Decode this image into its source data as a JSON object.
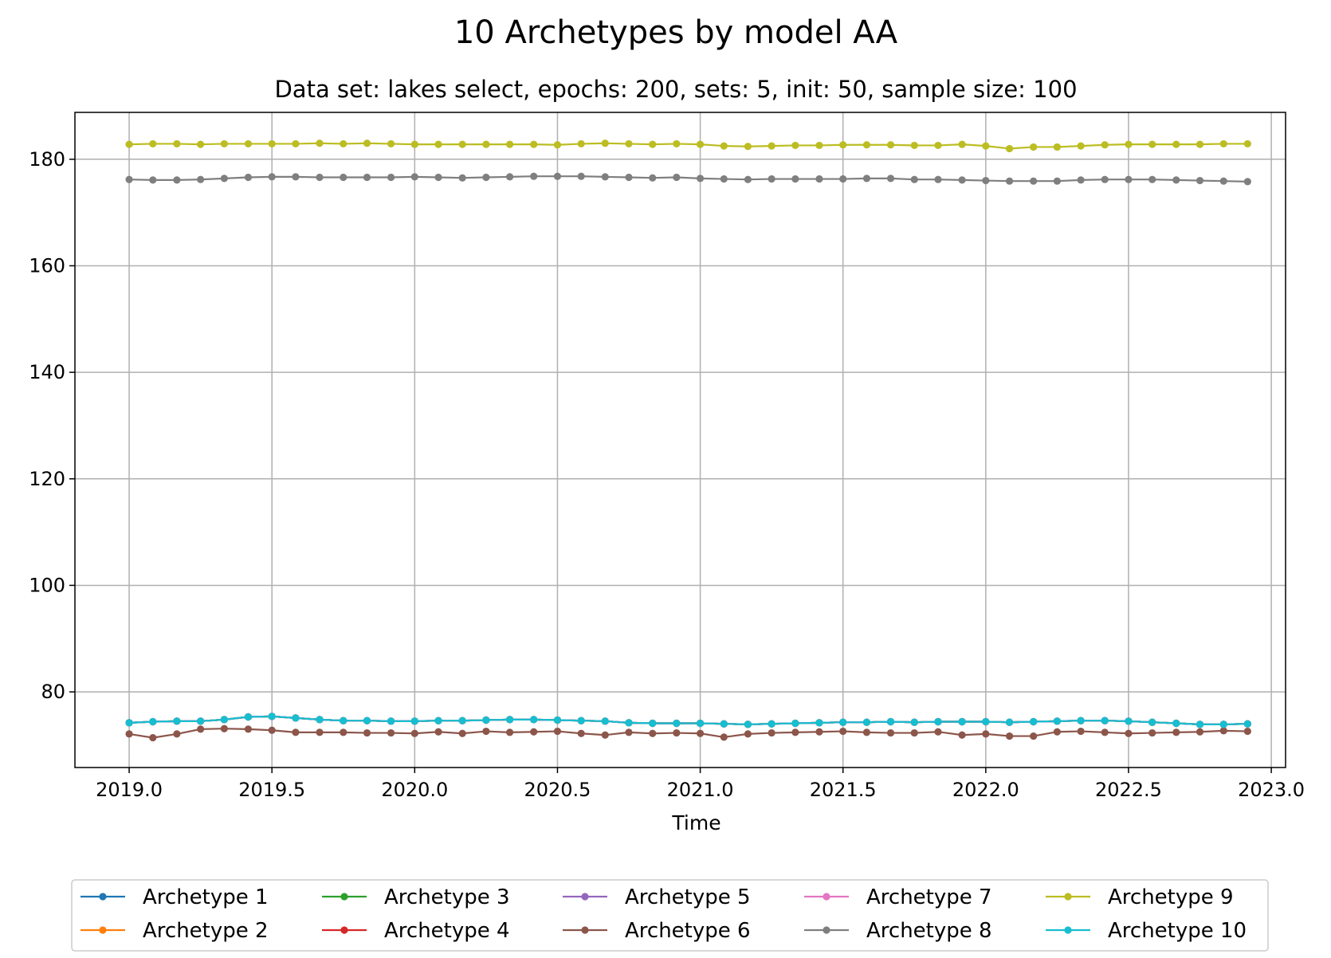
{
  "chart_data": {
    "type": "line",
    "title": "10 Archetypes by model AA",
    "subtitle": "Data set: lakes select, epochs: 200, sets: 5, init: 50, sample size: 100",
    "xlabel": "Time",
    "ylabel": "",
    "xlim": [
      2018.81,
      2023.05
    ],
    "ylim": [
      65.8,
      188.8
    ],
    "xticks": [
      "2019.0",
      "2019.5",
      "2020.0",
      "2020.5",
      "2021.0",
      "2021.5",
      "2022.0",
      "2022.5",
      "2023.0"
    ],
    "yticks": [
      "80",
      "100",
      "120",
      "140",
      "160",
      "180"
    ],
    "grid": true,
    "legend_position": "bottom-outside",
    "x": [
      2019.0,
      2019.083,
      2019.167,
      2019.25,
      2019.333,
      2019.417,
      2019.5,
      2019.583,
      2019.667,
      2019.75,
      2019.833,
      2019.917,
      2020.0,
      2020.083,
      2020.167,
      2020.25,
      2020.333,
      2020.417,
      2020.5,
      2020.583,
      2020.667,
      2020.75,
      2020.833,
      2020.917,
      2021.0,
      2021.083,
      2021.167,
      2021.25,
      2021.333,
      2021.417,
      2021.5,
      2021.583,
      2021.667,
      2021.75,
      2021.833,
      2021.917,
      2022.0,
      2022.083,
      2022.167,
      2022.25,
      2022.333,
      2022.417,
      2022.5,
      2022.583,
      2022.667,
      2022.75,
      2022.833,
      2022.917
    ],
    "series": [
      {
        "name": "Archetype 1",
        "color": "#1f77b4",
        "values": [
          74.2,
          74.4,
          74.5,
          74.5,
          74.8,
          75.3,
          75.4,
          75.1,
          74.8,
          74.6,
          74.6,
          74.5,
          74.5,
          74.6,
          74.6,
          74.7,
          74.8,
          74.8,
          74.7,
          74.6,
          74.5,
          74.2,
          74.1,
          74.1,
          74.1,
          74.0,
          73.9,
          74.0,
          74.1,
          74.2,
          74.3,
          74.3,
          74.4,
          74.3,
          74.4,
          74.4,
          74.4,
          74.3,
          74.4,
          74.5,
          74.6,
          74.6,
          74.5,
          74.3,
          74.1,
          73.9,
          73.9,
          74.0
        ]
      },
      {
        "name": "Archetype 2",
        "color": "#ff7f0e",
        "values": [
          74.2,
          74.4,
          74.5,
          74.5,
          74.8,
          75.3,
          75.4,
          75.1,
          74.8,
          74.6,
          74.6,
          74.5,
          74.5,
          74.6,
          74.6,
          74.7,
          74.8,
          74.8,
          74.7,
          74.6,
          74.5,
          74.2,
          74.1,
          74.1,
          74.1,
          74.0,
          73.9,
          74.0,
          74.1,
          74.2,
          74.3,
          74.3,
          74.4,
          74.3,
          74.4,
          74.4,
          74.4,
          74.3,
          74.4,
          74.5,
          74.6,
          74.6,
          74.5,
          74.3,
          74.1,
          73.9,
          73.9,
          74.0
        ]
      },
      {
        "name": "Archetype 3",
        "color": "#2ca02c",
        "values": [
          74.2,
          74.4,
          74.5,
          74.5,
          74.8,
          75.3,
          75.4,
          75.1,
          74.8,
          74.6,
          74.6,
          74.5,
          74.5,
          74.6,
          74.6,
          74.7,
          74.8,
          74.8,
          74.7,
          74.6,
          74.5,
          74.2,
          74.1,
          74.1,
          74.1,
          74.0,
          73.9,
          74.0,
          74.1,
          74.2,
          74.3,
          74.3,
          74.4,
          74.3,
          74.4,
          74.4,
          74.4,
          74.3,
          74.4,
          74.5,
          74.6,
          74.6,
          74.5,
          74.3,
          74.1,
          73.9,
          73.9,
          74.0
        ]
      },
      {
        "name": "Archetype 4",
        "color": "#d62728",
        "values": [
          74.2,
          74.4,
          74.5,
          74.5,
          74.8,
          75.3,
          75.4,
          75.1,
          74.8,
          74.6,
          74.6,
          74.5,
          74.5,
          74.6,
          74.6,
          74.7,
          74.8,
          74.8,
          74.7,
          74.6,
          74.5,
          74.2,
          74.1,
          74.1,
          74.1,
          74.0,
          73.9,
          74.0,
          74.1,
          74.2,
          74.3,
          74.3,
          74.4,
          74.3,
          74.4,
          74.4,
          74.4,
          74.3,
          74.4,
          74.5,
          74.6,
          74.6,
          74.5,
          74.3,
          74.1,
          73.9,
          73.9,
          74.0
        ]
      },
      {
        "name": "Archetype 5",
        "color": "#9467bd",
        "values": [
          74.2,
          74.4,
          74.5,
          74.5,
          74.8,
          75.3,
          75.4,
          75.1,
          74.8,
          74.6,
          74.6,
          74.5,
          74.5,
          74.6,
          74.6,
          74.7,
          74.8,
          74.8,
          74.7,
          74.6,
          74.5,
          74.2,
          74.1,
          74.1,
          74.1,
          74.0,
          73.9,
          74.0,
          74.1,
          74.2,
          74.3,
          74.3,
          74.4,
          74.3,
          74.4,
          74.4,
          74.4,
          74.3,
          74.4,
          74.5,
          74.6,
          74.6,
          74.5,
          74.3,
          74.1,
          73.9,
          73.9,
          74.0
        ]
      },
      {
        "name": "Archetype 6",
        "color": "#8c564b",
        "values": [
          72.1,
          71.4,
          72.1,
          73.0,
          73.1,
          73.0,
          72.8,
          72.4,
          72.4,
          72.4,
          72.3,
          72.3,
          72.2,
          72.5,
          72.2,
          72.6,
          72.4,
          72.5,
          72.6,
          72.2,
          71.9,
          72.4,
          72.2,
          72.3,
          72.2,
          71.5,
          72.1,
          72.3,
          72.4,
          72.5,
          72.6,
          72.4,
          72.3,
          72.3,
          72.5,
          71.9,
          72.1,
          71.7,
          71.7,
          72.5,
          72.6,
          72.4,
          72.2,
          72.3,
          72.4,
          72.5,
          72.7,
          72.6
        ]
      },
      {
        "name": "Archetype 7",
        "color": "#e377c2",
        "values": [
          74.2,
          74.4,
          74.5,
          74.5,
          74.8,
          75.3,
          75.4,
          75.1,
          74.8,
          74.6,
          74.6,
          74.5,
          74.5,
          74.6,
          74.6,
          74.7,
          74.8,
          74.8,
          74.7,
          74.6,
          74.5,
          74.2,
          74.1,
          74.1,
          74.1,
          74.0,
          73.9,
          74.0,
          74.1,
          74.2,
          74.3,
          74.3,
          74.4,
          74.3,
          74.4,
          74.4,
          74.4,
          74.3,
          74.4,
          74.5,
          74.6,
          74.6,
          74.5,
          74.3,
          74.1,
          73.9,
          73.9,
          74.0
        ]
      },
      {
        "name": "Archetype 8",
        "color": "#7f7f7f",
        "values": [
          176.2,
          176.1,
          176.1,
          176.2,
          176.4,
          176.6,
          176.7,
          176.7,
          176.6,
          176.6,
          176.6,
          176.6,
          176.7,
          176.6,
          176.5,
          176.6,
          176.7,
          176.8,
          176.8,
          176.8,
          176.7,
          176.6,
          176.5,
          176.6,
          176.4,
          176.3,
          176.2,
          176.3,
          176.3,
          176.3,
          176.3,
          176.4,
          176.4,
          176.2,
          176.2,
          176.1,
          176.0,
          175.9,
          175.9,
          175.9,
          176.1,
          176.2,
          176.2,
          176.2,
          176.1,
          176.0,
          175.9,
          175.8
        ]
      },
      {
        "name": "Archetype 9",
        "color": "#bcbd22",
        "values": [
          182.8,
          182.9,
          182.9,
          182.8,
          182.9,
          182.9,
          182.9,
          182.9,
          183.0,
          182.9,
          183.0,
          182.9,
          182.8,
          182.8,
          182.8,
          182.8,
          182.8,
          182.8,
          182.7,
          182.9,
          183.0,
          182.9,
          182.8,
          182.9,
          182.8,
          182.5,
          182.4,
          182.5,
          182.6,
          182.6,
          182.7,
          182.7,
          182.7,
          182.6,
          182.6,
          182.8,
          182.5,
          182.0,
          182.3,
          182.3,
          182.5,
          182.7,
          182.8,
          182.8,
          182.8,
          182.8,
          182.9,
          182.9
        ]
      },
      {
        "name": "Archetype 10",
        "color": "#17becf",
        "values": [
          74.2,
          74.4,
          74.5,
          74.5,
          74.8,
          75.3,
          75.4,
          75.1,
          74.8,
          74.6,
          74.6,
          74.5,
          74.5,
          74.6,
          74.6,
          74.7,
          74.8,
          74.8,
          74.7,
          74.6,
          74.5,
          74.2,
          74.1,
          74.1,
          74.1,
          74.0,
          73.9,
          74.0,
          74.1,
          74.2,
          74.3,
          74.3,
          74.4,
          74.3,
          74.4,
          74.4,
          74.4,
          74.3,
          74.4,
          74.5,
          74.6,
          74.6,
          74.5,
          74.3,
          74.1,
          73.9,
          73.9,
          74.0
        ]
      }
    ]
  }
}
